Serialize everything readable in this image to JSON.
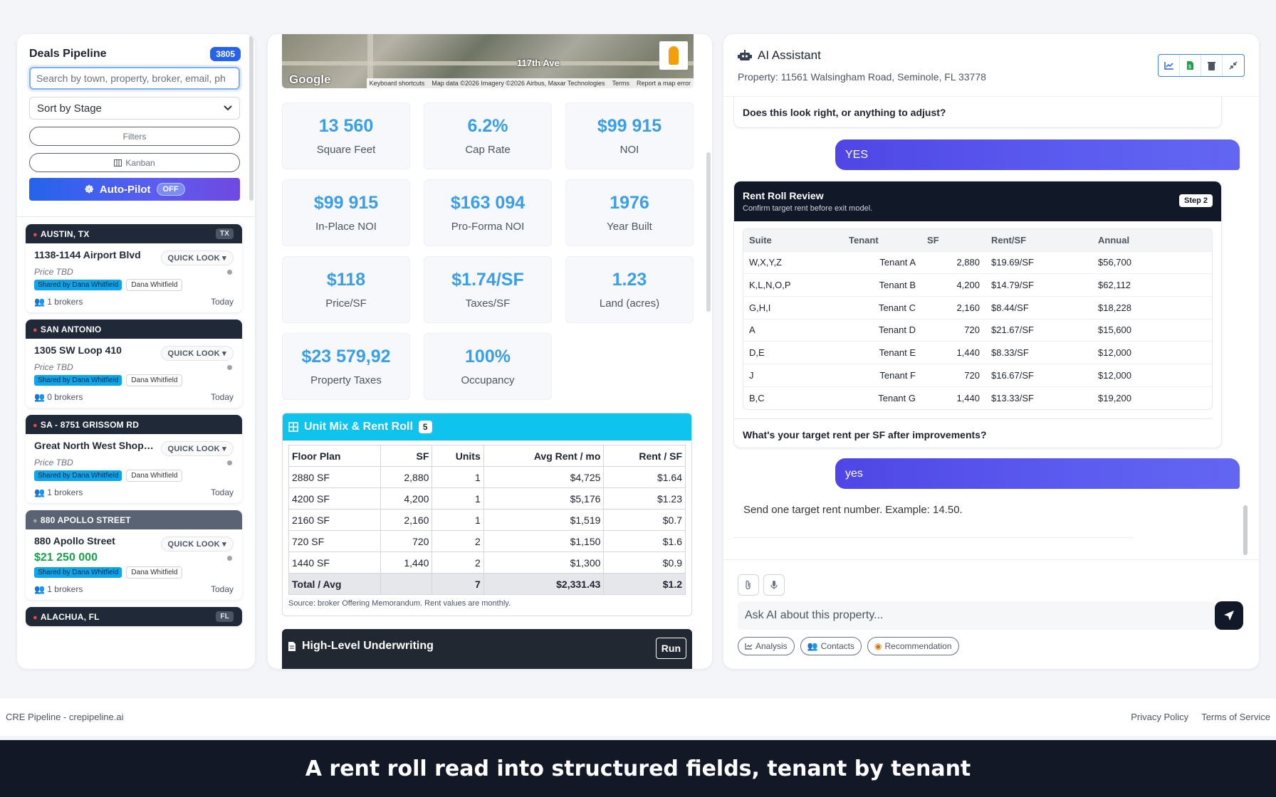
{
  "pipeline": {
    "title": "Deals Pipeline",
    "count": "3805",
    "search_placeholder": "Search by town, property, broker, email, ph",
    "sort_label": "Sort by Stage",
    "filters_label": "Filters",
    "kanban_label": "Kanban",
    "autopilot_label": "Auto-Pilot",
    "autopilot_state": "OFF",
    "quick_look_label": "QUICK LOOK",
    "deals": [
      {
        "location": "AUSTIN, TX",
        "state": "TX",
        "name": "1138-1144 Airport Blvd",
        "price": "Price TBD",
        "shared": "Shared by Dana Whitfield",
        "owner": "Dana Whitfield",
        "brokers": "1 brokers",
        "date": "Today"
      },
      {
        "location": "SAN ANTONIO",
        "state": "",
        "name": "1305 SW Loop 410",
        "price": "Price TBD",
        "shared": "Shared by Dana Whitfield",
        "owner": "Dana Whitfield",
        "brokers": "0 brokers",
        "date": "Today"
      },
      {
        "location": "SA - 8751 GRISSOM RD",
        "state": "",
        "name": "Great North West Shopping Center",
        "price": "Price TBD",
        "shared": "Shared by Dana Whitfield",
        "owner": "Dana Whitfield",
        "brokers": "1 brokers",
        "date": "Today"
      },
      {
        "location": "880 APOLLO STREET",
        "state": "",
        "name": "880 Apollo Street",
        "price": "$21 250 000",
        "shared": "Shared by Dana Whitfield",
        "owner": "Dana Whitfield",
        "brokers": "1 brokers",
        "date": "Today"
      },
      {
        "location": "ALACHUA, FL",
        "state": "FL"
      }
    ]
  },
  "map": {
    "street_label": "117th Ave",
    "google": "Google",
    "attribution": [
      "Keyboard shortcuts",
      "Map data ©2026 Imagery ©2026 Airbus, Maxar Technologies",
      "Terms",
      "Report a map error"
    ]
  },
  "stats": [
    {
      "value": "13 560",
      "label": "Square Feet"
    },
    {
      "value": "6.2%",
      "label": "Cap Rate"
    },
    {
      "value": "$99 915",
      "label": "NOI"
    },
    {
      "value": "$99 915",
      "label": "In-Place NOI"
    },
    {
      "value": "$163 094",
      "label": "Pro-Forma NOI"
    },
    {
      "value": "1976",
      "label": "Year Built"
    },
    {
      "value": "$118",
      "label": "Price/SF"
    },
    {
      "value": "$1.74/SF",
      "label": "Taxes/SF"
    },
    {
      "value": "1.23",
      "label": "Land (acres)"
    },
    {
      "value": "$23 579,92",
      "label": "Property Taxes"
    },
    {
      "value": "100%",
      "label": "Occupancy"
    }
  ],
  "unit_mix": {
    "title": "Unit Mix & Rent Roll",
    "count": "5",
    "headers": [
      "Floor Plan",
      "SF",
      "Units",
      "Avg Rent / mo",
      "Rent / SF"
    ],
    "rows": [
      [
        "2880 SF",
        "2,880",
        "1",
        "$4,725",
        "$1.64"
      ],
      [
        "4200 SF",
        "4,200",
        "1",
        "$5,176",
        "$1.23"
      ],
      [
        "2160 SF",
        "2,160",
        "1",
        "$1,519",
        "$0.7"
      ],
      [
        "720 SF",
        "720",
        "2",
        "$1,150",
        "$1.6"
      ],
      [
        "1440 SF",
        "1,440",
        "2",
        "$1,300",
        "$0.9"
      ]
    ],
    "total": [
      "Total / Avg",
      "",
      "7",
      "$2,331.43",
      "$1.2"
    ],
    "source": "Source: broker Offering Memorandum. Rent values are monthly."
  },
  "underwriting": {
    "title": "High-Level Underwriting",
    "run_label": "Run"
  },
  "assistant": {
    "title": "AI Assistant",
    "property": "Property: 11561 Walsingham Road, Seminole, FL 33778",
    "prev_question": "Does this look right, or anything to adjust?",
    "user_msg_1": "YES",
    "rent_roll": {
      "title": "Rent Roll Review",
      "subtitle": "Confirm target rent before exit model.",
      "step": "Step 2",
      "headers": [
        "Suite",
        "Tenant",
        "SF",
        "Rent/SF",
        "Annual"
      ],
      "rows": [
        [
          "W,X,Y,Z",
          "Tenant A",
          "2,880",
          "$19.69/SF",
          "$56,700"
        ],
        [
          "K,L,N,O,P",
          "Tenant B",
          "4,200",
          "$14.79/SF",
          "$62,112"
        ],
        [
          "G,H,I",
          "Tenant C",
          "2,160",
          "$8.44/SF",
          "$18,228"
        ],
        [
          "A",
          "Tenant D",
          "720",
          "$21.67/SF",
          "$15,600"
        ],
        [
          "D,E",
          "Tenant E",
          "1,440",
          "$8.33/SF",
          "$12,000"
        ],
        [
          "J",
          "Tenant F",
          "720",
          "$16.67/SF",
          "$12,000"
        ],
        [
          "B,C",
          "Tenant G",
          "1,440",
          "$13.33/SF",
          "$19,200"
        ]
      ],
      "question": "What's your target rent per SF after improvements?"
    },
    "user_msg_2": "yes",
    "assistant_msg": "Send one target rent number. Example: 14.50.",
    "input_placeholder": "Ask AI about this property...",
    "chips": [
      "Analysis",
      "Contacts",
      "Recommendation"
    ]
  },
  "footer": {
    "brand": "CRE Pipeline - crepipeline.ai",
    "privacy": "Privacy Policy",
    "terms": "Terms of Service"
  },
  "caption": "A rent roll read into structured fields, tenant by tenant",
  "colors": {
    "accent": "#2563eb",
    "cyan": "#0ec3ee",
    "stat": "#3b9ee8",
    "green": "#16a34a",
    "dark": "#111827"
  }
}
